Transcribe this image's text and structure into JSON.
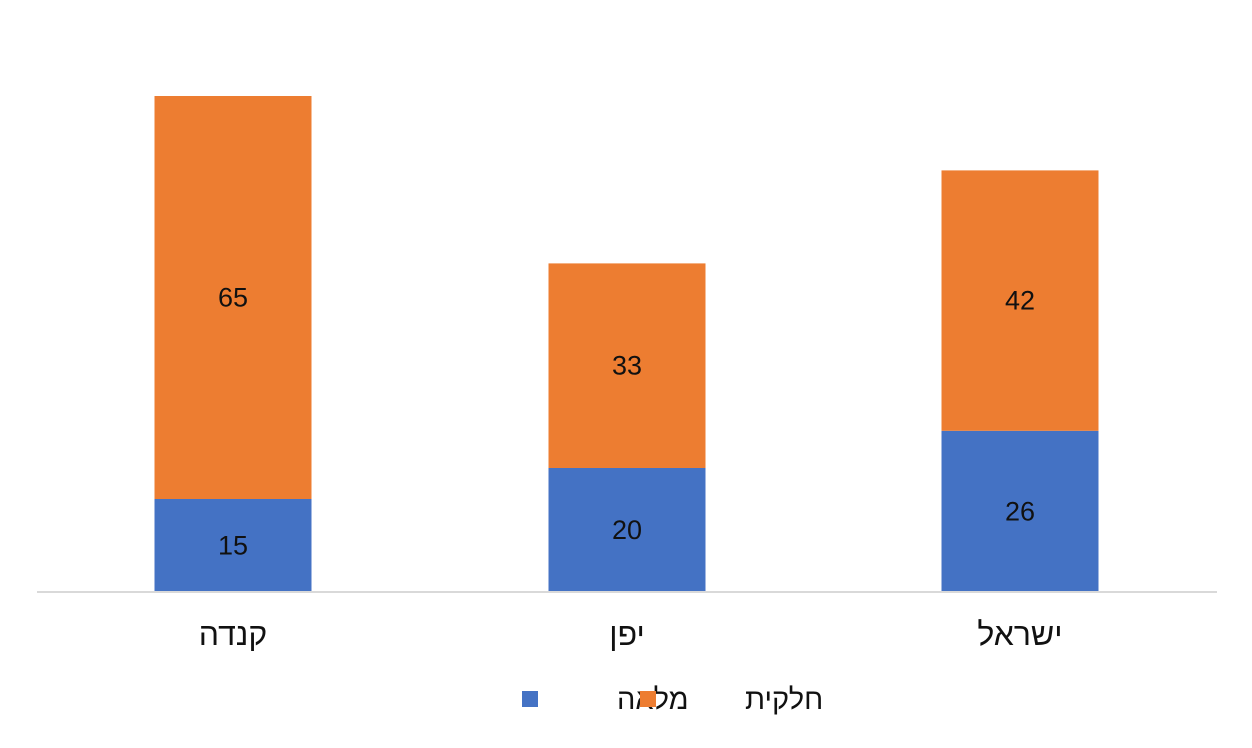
{
  "chart_data": {
    "type": "bar",
    "stacked": true,
    "categories": [
      "קנדה",
      "יפן",
      "ישראל"
    ],
    "series": [
      {
        "name": "מלאה",
        "values": [
          15,
          20,
          26
        ],
        "color": "#4472C4"
      },
      {
        "name": "חלקית",
        "values": [
          65,
          33,
          42
        ],
        "color": "#ED7D31"
      }
    ],
    "ylim": [
      0,
      80
    ],
    "grid": false,
    "legend_position": "bottom",
    "axis_color": "#D9D9D9"
  }
}
